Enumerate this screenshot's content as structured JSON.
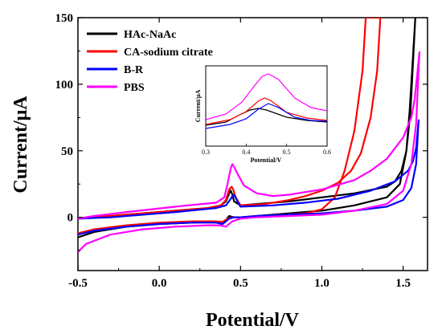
{
  "chart_data": {
    "type": "line",
    "xlabel": "Potential/V",
    "ylabel": "Current/μA",
    "xlim": [
      -0.5,
      1.65
    ],
    "ylim": [
      -40,
      150
    ],
    "xticks": [
      "-0.5",
      "0.0",
      "0.5",
      "1.0",
      "1.5"
    ],
    "yticks": [
      "0",
      "50",
      "100",
      "150"
    ],
    "legend_position": "top-left",
    "series": [
      {
        "name": "HAc-NaAc",
        "color": "#000000",
        "forward": [
          [
            -0.5,
            -15
          ],
          [
            -0.4,
            -11
          ],
          [
            -0.2,
            -7
          ],
          [
            0.0,
            -5
          ],
          [
            0.2,
            -4
          ],
          [
            0.3,
            -3.5
          ],
          [
            0.36,
            -3.5
          ],
          [
            0.39,
            -3.5
          ],
          [
            0.41,
            -2
          ],
          [
            0.43,
            1
          ],
          [
            0.46,
            0
          ],
          [
            0.5,
            0
          ],
          [
            0.6,
            1
          ],
          [
            0.8,
            3
          ],
          [
            1.0,
            5
          ],
          [
            1.2,
            9
          ],
          [
            1.4,
            15
          ],
          [
            1.48,
            25
          ],
          [
            1.52,
            50
          ],
          [
            1.54,
            80
          ],
          [
            1.56,
            120
          ],
          [
            1.575,
            150
          ]
        ],
        "reverse": [
          [
            1.575,
            150
          ],
          [
            1.545,
            80
          ],
          [
            1.52,
            50
          ],
          [
            1.49,
            35
          ],
          [
            1.45,
            27
          ],
          [
            1.4,
            23
          ],
          [
            1.2,
            18
          ],
          [
            1.0,
            15
          ],
          [
            0.8,
            12
          ],
          [
            0.6,
            10
          ],
          [
            0.5,
            9
          ],
          [
            0.46,
            12
          ],
          [
            0.45,
            17
          ],
          [
            0.44,
            20
          ],
          [
            0.43,
            18
          ],
          [
            0.41,
            12
          ],
          [
            0.38,
            9
          ],
          [
            0.3,
            7
          ],
          [
            0.1,
            5
          ],
          [
            -0.1,
            3
          ],
          [
            -0.3,
            1
          ],
          [
            -0.5,
            -1
          ]
        ]
      },
      {
        "name": "CA-sodium citrate",
        "color": "#ff0000",
        "forward": [
          [
            -0.5,
            -12
          ],
          [
            -0.4,
            -9
          ],
          [
            -0.2,
            -6
          ],
          [
            0.0,
            -4
          ],
          [
            0.2,
            -3
          ],
          [
            0.35,
            -3
          ],
          [
            0.39,
            -3.5
          ],
          [
            0.42,
            -1
          ],
          [
            0.45,
            0
          ],
          [
            0.5,
            0
          ],
          [
            0.6,
            1
          ],
          [
            0.8,
            2
          ],
          [
            0.9,
            3
          ],
          [
            1.0,
            6
          ],
          [
            1.08,
            15
          ],
          [
            1.14,
            35
          ],
          [
            1.2,
            65
          ],
          [
            1.25,
            110
          ],
          [
            1.27,
            150
          ]
        ],
        "reverse": [
          [
            1.36,
            150
          ],
          [
            1.34,
            110
          ],
          [
            1.3,
            75
          ],
          [
            1.24,
            48
          ],
          [
            1.18,
            35
          ],
          [
            1.1,
            26
          ],
          [
            1.0,
            20
          ],
          [
            0.9,
            16
          ],
          [
            0.8,
            13
          ],
          [
            0.65,
            10
          ],
          [
            0.5,
            9
          ],
          [
            0.47,
            15
          ],
          [
            0.455,
            21
          ],
          [
            0.445,
            23
          ],
          [
            0.43,
            21
          ],
          [
            0.41,
            13
          ],
          [
            0.38,
            9
          ],
          [
            0.3,
            7
          ],
          [
            0.1,
            5
          ],
          [
            -0.1,
            3
          ],
          [
            -0.3,
            1
          ],
          [
            -0.5,
            -1
          ]
        ]
      },
      {
        "name": "B-R",
        "color": "#0000ff",
        "forward": [
          [
            -0.5,
            -13
          ],
          [
            -0.4,
            -10
          ],
          [
            -0.2,
            -7
          ],
          [
            0.0,
            -5
          ],
          [
            0.2,
            -4
          ],
          [
            0.35,
            -4
          ],
          [
            0.39,
            -5
          ],
          [
            0.43,
            -1
          ],
          [
            0.46,
            0
          ],
          [
            0.5,
            0
          ],
          [
            0.6,
            1
          ],
          [
            0.8,
            2
          ],
          [
            1.0,
            3
          ],
          [
            1.2,
            5
          ],
          [
            1.4,
            8
          ],
          [
            1.5,
            13
          ],
          [
            1.55,
            22
          ],
          [
            1.58,
            40
          ],
          [
            1.595,
            73
          ]
        ],
        "reverse": [
          [
            1.595,
            73
          ],
          [
            1.58,
            52
          ],
          [
            1.56,
            42
          ],
          [
            1.53,
            35
          ],
          [
            1.45,
            27
          ],
          [
            1.3,
            20
          ],
          [
            1.1,
            14
          ],
          [
            0.9,
            11
          ],
          [
            0.7,
            9
          ],
          [
            0.5,
            8
          ],
          [
            0.48,
            12
          ],
          [
            0.465,
            16
          ],
          [
            0.455,
            17
          ],
          [
            0.44,
            14
          ],
          [
            0.41,
            9
          ],
          [
            0.35,
            7
          ],
          [
            0.1,
            4
          ],
          [
            -0.1,
            2
          ],
          [
            -0.3,
            0
          ],
          [
            -0.5,
            -1
          ]
        ]
      },
      {
        "name": "PBS",
        "color": "#ff00ff",
        "forward": [
          [
            -0.5,
            -26
          ],
          [
            -0.45,
            -20
          ],
          [
            -0.3,
            -13
          ],
          [
            -0.1,
            -9
          ],
          [
            0.1,
            -7
          ],
          [
            0.3,
            -6
          ],
          [
            0.37,
            -6
          ],
          [
            0.41,
            -7
          ],
          [
            0.45,
            -3
          ],
          [
            0.5,
            -1
          ],
          [
            0.6,
            0
          ],
          [
            0.8,
            1
          ],
          [
            1.0,
            2
          ],
          [
            1.2,
            5
          ],
          [
            1.4,
            10
          ],
          [
            1.5,
            20
          ],
          [
            1.55,
            40
          ],
          [
            1.58,
            70
          ],
          [
            1.6,
            124
          ]
        ],
        "reverse": [
          [
            1.6,
            124
          ],
          [
            1.585,
            105
          ],
          [
            1.57,
            88
          ],
          [
            1.55,
            75
          ],
          [
            1.5,
            60
          ],
          [
            1.4,
            44
          ],
          [
            1.3,
            35
          ],
          [
            1.2,
            28
          ],
          [
            1.0,
            21
          ],
          [
            0.8,
            17
          ],
          [
            0.7,
            16
          ],
          [
            0.6,
            18
          ],
          [
            0.52,
            24
          ],
          [
            0.48,
            33
          ],
          [
            0.46,
            38
          ],
          [
            0.45,
            40
          ],
          [
            0.44,
            37
          ],
          [
            0.42,
            25
          ],
          [
            0.4,
            15
          ],
          [
            0.35,
            11
          ],
          [
            0.1,
            8
          ],
          [
            -0.2,
            4
          ],
          [
            -0.4,
            1
          ],
          [
            -0.5,
            -1
          ]
        ]
      }
    ],
    "inset": {
      "type": "line",
      "xlabel": "Potential/V",
      "ylabel": "Current/μA",
      "xlim": [
        0.3,
        0.6
      ],
      "ylim": [
        0,
        1
      ],
      "xticks": [
        "0.3",
        "0.4",
        "0.5",
        "0.6"
      ],
      "series": [
        {
          "name": "HAc-NaAc",
          "color": "#000000",
          "points": [
            [
              0.3,
              0.26
            ],
            [
              0.35,
              0.3
            ],
            [
              0.38,
              0.38
            ],
            [
              0.41,
              0.45
            ],
            [
              0.43,
              0.47
            ],
            [
              0.45,
              0.45
            ],
            [
              0.5,
              0.36
            ],
            [
              0.55,
              0.32
            ],
            [
              0.6,
              0.3
            ]
          ]
        },
        {
          "name": "CA-sodium citrate",
          "color": "#ff0000",
          "points": [
            [
              0.3,
              0.27
            ],
            [
              0.36,
              0.33
            ],
            [
              0.4,
              0.43
            ],
            [
              0.43,
              0.56
            ],
            [
              0.445,
              0.6
            ],
            [
              0.46,
              0.57
            ],
            [
              0.5,
              0.42
            ],
            [
              0.55,
              0.35
            ],
            [
              0.6,
              0.32
            ]
          ]
        },
        {
          "name": "B-R",
          "color": "#0000ff",
          "points": [
            [
              0.3,
              0.22
            ],
            [
              0.36,
              0.27
            ],
            [
              0.4,
              0.34
            ],
            [
              0.43,
              0.46
            ],
            [
              0.455,
              0.53
            ],
            [
              0.48,
              0.48
            ],
            [
              0.52,
              0.36
            ],
            [
              0.56,
              0.32
            ],
            [
              0.6,
              0.31
            ]
          ]
        },
        {
          "name": "PBS",
          "color": "#ff00ff",
          "points": [
            [
              0.3,
              0.33
            ],
            [
              0.35,
              0.4
            ],
            [
              0.39,
              0.55
            ],
            [
              0.42,
              0.75
            ],
            [
              0.44,
              0.87
            ],
            [
              0.455,
              0.9
            ],
            [
              0.48,
              0.83
            ],
            [
              0.52,
              0.6
            ],
            [
              0.56,
              0.48
            ],
            [
              0.6,
              0.44
            ]
          ]
        }
      ]
    }
  }
}
